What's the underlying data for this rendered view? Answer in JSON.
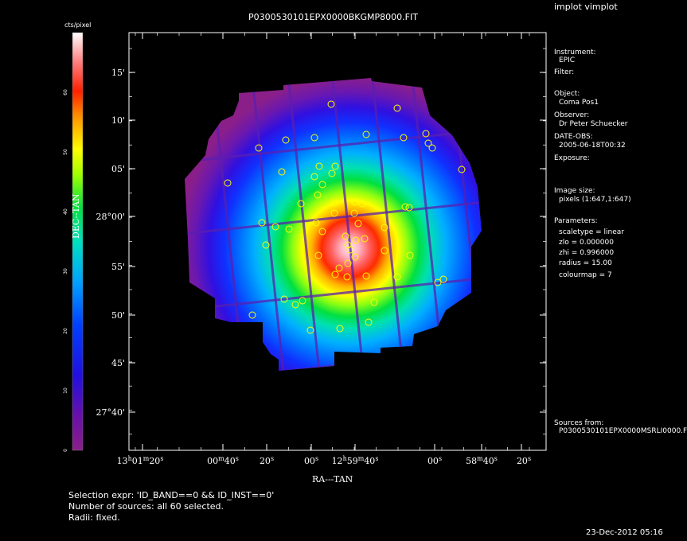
{
  "window": {
    "title": "implot vimplot"
  },
  "chart_data": {
    "type": "heatmap",
    "title": "P0300530101EPX0000BKGMP8000.FIT",
    "xlabel": "RA---TAN",
    "ylabel": "DEC--TAN",
    "colorbar": {
      "label": "cts/pixel",
      "ticks": [
        "0",
        "10",
        "20",
        "30",
        "40",
        "50",
        "60"
      ],
      "colormap": "rainbow"
    },
    "x_ticks": [
      {
        "main": "13",
        "sup": "h",
        "main2": "01",
        "sup2": "m",
        "main3": "20",
        "sup3": "s"
      },
      {
        "main": "00",
        "sup": "m",
        "main2": "40",
        "sup2": "s"
      },
      {
        "main": "20",
        "sup": "s"
      },
      {
        "main": "00",
        "sup": "s"
      },
      {
        "main": "12",
        "sup": "h",
        "main2": "59",
        "sup2": "m",
        "main3": "40",
        "sup3": "s"
      },
      {
        "main": "00",
        "sup": "s"
      },
      {
        "main": "58",
        "sup": "m",
        "main2": "40",
        "sup2": "s"
      },
      {
        "main": "20",
        "sup": "s"
      }
    ],
    "y_ticks": [
      {
        "label": "15'"
      },
      {
        "label": "10'"
      },
      {
        "label": "05'"
      },
      {
        "label": "28°00'"
      },
      {
        "label": "55'"
      },
      {
        "label": "50'"
      },
      {
        "label": "45'"
      },
      {
        "label": "27°40'"
      }
    ],
    "sources_count": 60,
    "colors": {
      "background": "#000000",
      "outer": "#8a1f8a",
      "source_marker": "#ffff00"
    }
  },
  "side_panel": {
    "instrument_label": "Instrument:",
    "instrument_value": "EPIC",
    "filter_label": "Filter:",
    "object_label": "Object:",
    "object_value": "Coma Pos1",
    "observer_label": "Observer:",
    "observer_value": "Dr Peter Schuecker",
    "date_label": "DATE-OBS:",
    "date_value": "2005-06-18T00:32",
    "exposure_label": "Exposure:",
    "image_size_label": "Image size:",
    "image_size_value": "pixels (1:647,1:647)",
    "parameters_label": "Parameters:",
    "params": [
      "scaletype = linear",
      "zlo = 0.000000",
      "zhi = 0.996000",
      "radius = 15.00",
      "colourmap = 7"
    ],
    "sources_from_label": "Sources from:",
    "sources_from_value": "P0300530101EPX0000MSRLI0000.F"
  },
  "footer": {
    "selection": "Selection expr: 'ID_BAND==0 && ID_INST==0'",
    "count": "Number of sources: all 60 selected.",
    "radii": "Radii: fixed.",
    "timestamp": "23-Dec-2012 05:16"
  }
}
